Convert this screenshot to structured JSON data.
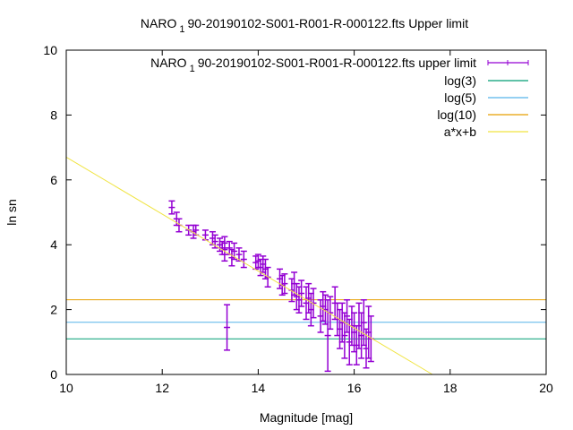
{
  "chart_data": {
    "type": "scatter",
    "title": "NARO_190-20190102-S001-R001-R-000122.fts Upper limit",
    "title_main": "NARO",
    "title_sub": "1",
    "title_rest": "90-20190102-S001-R001-R-000122.fts Upper limit",
    "xlabel": "Magnitude [mag]",
    "ylabel": "ln sn",
    "xlim": [
      10,
      20
    ],
    "ylim": [
      0,
      10
    ],
    "xticks": [
      "10",
      "12",
      "14",
      "16",
      "18",
      "20"
    ],
    "yticks": [
      "0",
      "2",
      "4",
      "6",
      "8",
      "10"
    ],
    "legend_position": "top-right",
    "legend": [
      {
        "label_main": "NARO",
        "label_sub": "1",
        "label_rest": "90-20190102-S001-R001-R-000122.fts upper limit",
        "color": "#9400d3",
        "kind": "errorbar"
      },
      {
        "label": "log(3)",
        "color": "#009e73",
        "kind": "line"
      },
      {
        "label": "log(5)",
        "color": "#56b4e9",
        "kind": "line"
      },
      {
        "label": "log(10)",
        "color": "#e69f00",
        "kind": "line"
      },
      {
        "label": "a*x+b",
        "color": "#f0e442",
        "kind": "line"
      }
    ],
    "hlines": [
      1.0986,
      1.6094,
      2.3026
    ],
    "fit": {
      "a": -0.878,
      "b": 15.48
    },
    "points": [
      [
        12.2,
        5.15,
        0.2
      ],
      [
        12.3,
        4.8,
        0.2
      ],
      [
        12.35,
        4.6,
        0.2
      ],
      [
        12.55,
        4.45,
        0.15
      ],
      [
        12.65,
        4.4,
        0.2
      ],
      [
        12.7,
        4.45,
        0.15
      ],
      [
        12.9,
        4.3,
        0.15
      ],
      [
        13.05,
        4.2,
        0.2
      ],
      [
        13.1,
        4.1,
        0.2
      ],
      [
        13.2,
        4.0,
        0.2
      ],
      [
        13.25,
        3.9,
        0.2
      ],
      [
        13.3,
        4.05,
        0.2
      ],
      [
        13.3,
        3.7,
        0.2
      ],
      [
        13.35,
        1.45,
        0.7
      ],
      [
        13.4,
        3.9,
        0.2
      ],
      [
        13.45,
        3.6,
        0.25
      ],
      [
        13.5,
        3.8,
        0.25
      ],
      [
        13.6,
        3.7,
        0.2
      ],
      [
        13.7,
        3.55,
        0.25
      ],
      [
        13.95,
        3.45,
        0.2
      ],
      [
        14.0,
        3.5,
        0.2
      ],
      [
        14.05,
        3.3,
        0.25
      ],
      [
        14.1,
        3.4,
        0.25
      ],
      [
        14.15,
        3.25,
        0.3
      ],
      [
        14.2,
        3.0,
        0.3
      ],
      [
        14.45,
        2.95,
        0.3
      ],
      [
        14.5,
        2.75,
        0.3
      ],
      [
        14.55,
        2.8,
        0.3
      ],
      [
        14.7,
        2.6,
        0.35
      ],
      [
        14.75,
        2.8,
        0.35
      ],
      [
        14.8,
        2.4,
        0.4
      ],
      [
        14.85,
        2.3,
        0.4
      ],
      [
        14.9,
        2.5,
        0.4
      ],
      [
        15.0,
        2.2,
        0.5
      ],
      [
        15.05,
        2.35,
        0.45
      ],
      [
        15.1,
        2.0,
        0.5
      ],
      [
        15.15,
        2.2,
        0.45
      ],
      [
        15.3,
        1.8,
        0.5
      ],
      [
        15.35,
        2.1,
        0.45
      ],
      [
        15.4,
        2.0,
        0.45
      ],
      [
        15.45,
        1.2,
        1.1
      ],
      [
        15.5,
        1.9,
        0.5
      ],
      [
        15.6,
        2.2,
        0.5
      ],
      [
        15.65,
        1.7,
        0.5
      ],
      [
        15.7,
        1.4,
        0.6
      ],
      [
        15.75,
        1.6,
        0.6
      ],
      [
        15.8,
        1.2,
        0.7
      ],
      [
        15.85,
        1.8,
        0.5
      ],
      [
        15.9,
        1.0,
        0.7
      ],
      [
        15.95,
        1.5,
        0.6
      ],
      [
        16.0,
        1.3,
        0.6
      ],
      [
        16.05,
        0.9,
        0.6
      ],
      [
        16.1,
        1.5,
        0.7
      ],
      [
        16.15,
        1.2,
        0.7
      ],
      [
        16.2,
        1.6,
        0.7
      ],
      [
        16.25,
        0.8,
        0.6
      ],
      [
        16.3,
        1.3,
        0.8
      ],
      [
        16.35,
        1.1,
        0.7
      ]
    ]
  }
}
